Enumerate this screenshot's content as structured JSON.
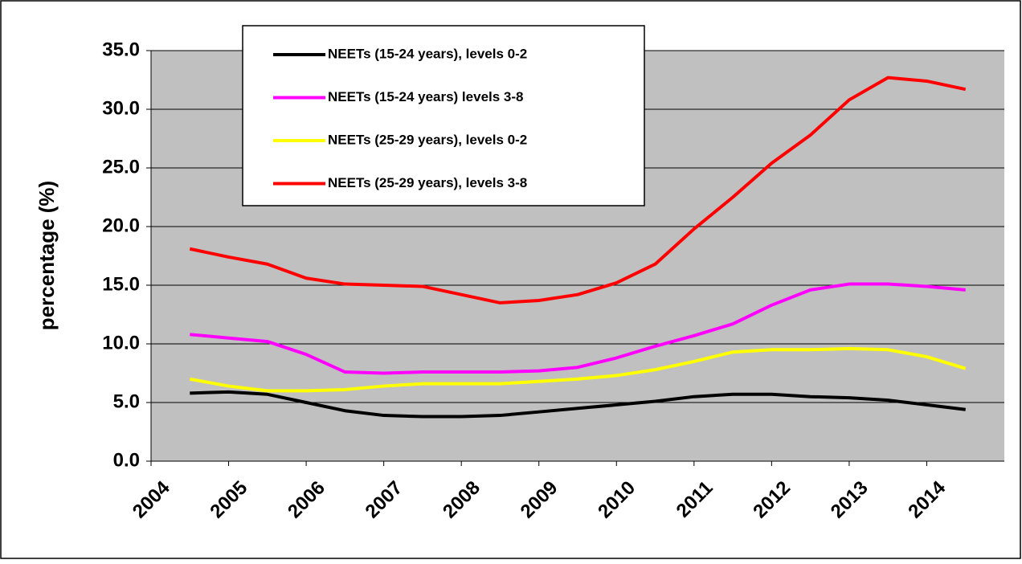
{
  "chart_data": {
    "type": "line",
    "y_label": "percentage (%)",
    "x": [
      2004.5,
      2005,
      2005.5,
      2006,
      2006.5,
      2007,
      2007.5,
      2008,
      2008.5,
      2009,
      2009.5,
      2010,
      2010.5,
      2011,
      2011.5,
      2012,
      2012.5,
      2013,
      2013.5,
      2014,
      2014.5
    ],
    "xlim": [
      2004,
      2015
    ],
    "xticks": [
      2004,
      2005,
      2006,
      2007,
      2008,
      2009,
      2010,
      2011,
      2012,
      2013,
      2014
    ],
    "ylim": [
      0,
      35
    ],
    "yticks": [
      {
        "value": 0,
        "label": "0.0"
      },
      {
        "value": 5,
        "label": "5.0"
      },
      {
        "value": 10,
        "label": "10.0"
      },
      {
        "value": 15,
        "label": "15.0"
      },
      {
        "value": 20,
        "label": "20.0"
      },
      {
        "value": 25,
        "label": "25.0"
      },
      {
        "value": 30,
        "label": "30.0"
      },
      {
        "value": 35,
        "label": "35.0"
      }
    ],
    "grid": true,
    "legend": "top-left",
    "series": [
      {
        "name": "NEETs (15-24 years), levels 0-2",
        "color": "#000000",
        "values": [
          5.8,
          5.9,
          5.7,
          5.0,
          4.3,
          3.9,
          3.8,
          3.8,
          3.9,
          4.2,
          4.5,
          4.8,
          5.1,
          5.5,
          5.7,
          5.7,
          5.5,
          5.4,
          5.2,
          4.8,
          4.4
        ]
      },
      {
        "name": "NEETs (15-24 years) levels 3-8",
        "color": "#ff00ff",
        "values": [
          10.8,
          10.5,
          10.2,
          9.1,
          7.6,
          7.5,
          7.6,
          7.6,
          7.6,
          7.7,
          8.0,
          8.8,
          9.8,
          10.7,
          11.7,
          13.3,
          14.6,
          15.1,
          15.1,
          14.9,
          14.6
        ]
      },
      {
        "name": "NEETs (25-29 years), levels 0-2",
        "color": "#ffff00",
        "values": [
          7.0,
          6.4,
          6.0,
          6.0,
          6.1,
          6.4,
          6.6,
          6.6,
          6.6,
          6.8,
          7.0,
          7.3,
          7.8,
          8.5,
          9.3,
          9.5,
          9.5,
          9.6,
          9.5,
          8.9,
          7.9
        ]
      },
      {
        "name": "NEETs (25-29 years), levels 3-8",
        "color": "#ff0000",
        "values": [
          18.1,
          17.4,
          16.8,
          15.6,
          15.1,
          15.0,
          14.9,
          14.2,
          13.5,
          13.7,
          14.2,
          15.2,
          16.8,
          19.8,
          22.5,
          25.4,
          27.8,
          30.8,
          32.7,
          32.4,
          31.7
        ]
      }
    ]
  }
}
